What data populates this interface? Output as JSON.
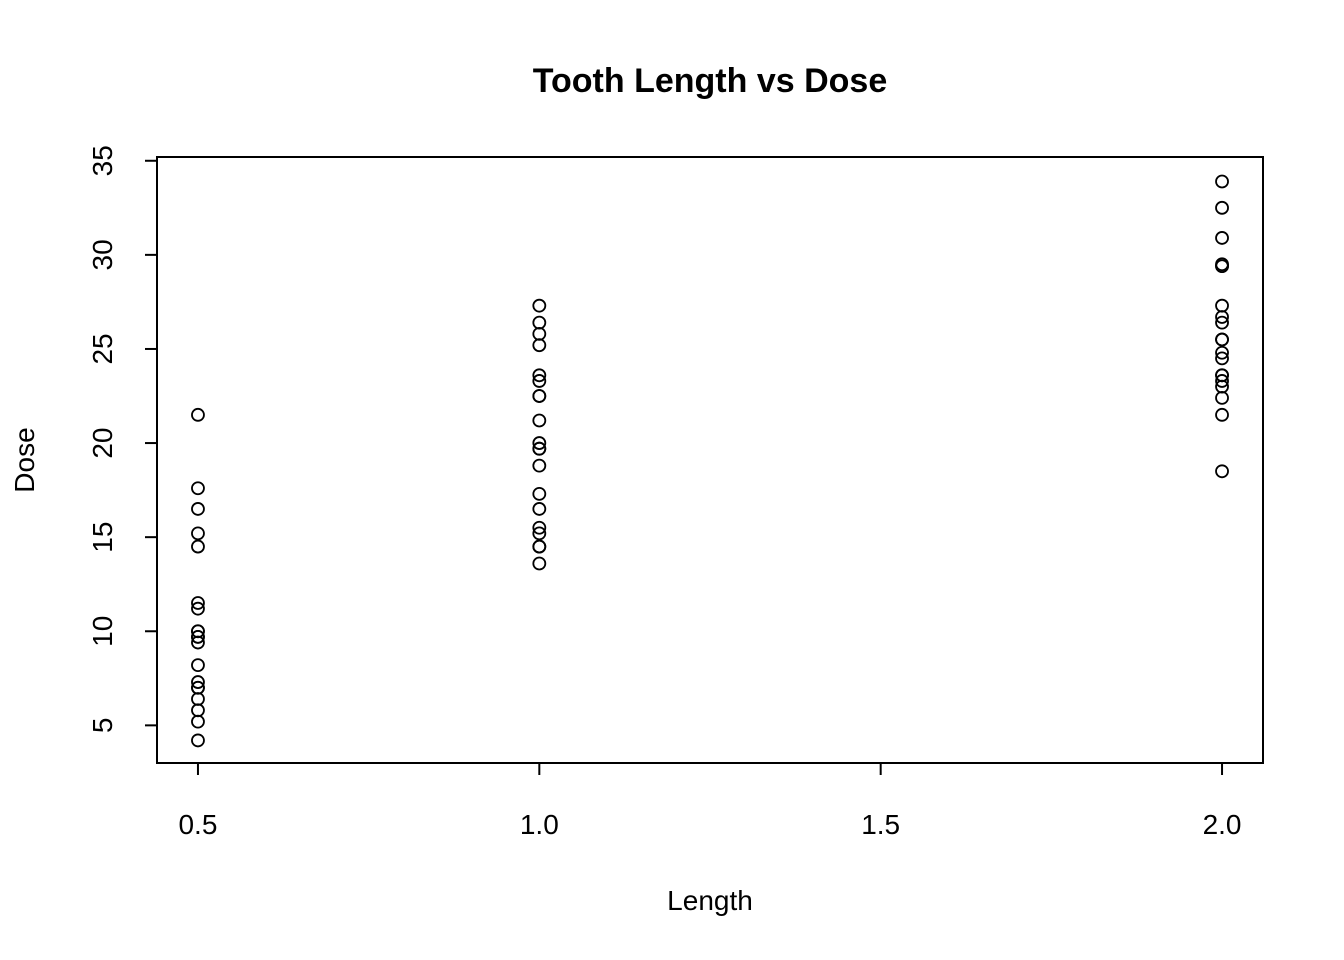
{
  "chart_data": {
    "type": "scatter",
    "title": "Tooth Length vs Dose",
    "xlabel": "Length",
    "ylabel": "Dose",
    "xlim": [
      0.44,
      2.06
    ],
    "ylim": [
      3.0,
      35.2
    ],
    "x_ticks": [
      0.5,
      1.0,
      1.5,
      2.0
    ],
    "x_tick_labels": [
      "0.5",
      "1.0",
      "1.5",
      "2.0"
    ],
    "y_ticks": [
      5,
      10,
      15,
      20,
      25,
      30,
      35
    ],
    "y_tick_labels": [
      "5",
      "10",
      "15",
      "20",
      "25",
      "30",
      "35"
    ],
    "grid": false,
    "legend": "none",
    "marker": "open-circle",
    "colors": {
      "points": "#000000",
      "axes": "#000000",
      "background": "#ffffff"
    },
    "series": [
      {
        "x": [
          0.5,
          0.5,
          0.5,
          0.5,
          0.5,
          0.5,
          0.5,
          0.5,
          0.5,
          0.5,
          0.5,
          0.5,
          0.5,
          0.5,
          0.5,
          0.5,
          0.5,
          0.5,
          0.5,
          0.5,
          1.0,
          1.0,
          1.0,
          1.0,
          1.0,
          1.0,
          1.0,
          1.0,
          1.0,
          1.0,
          1.0,
          1.0,
          1.0,
          1.0,
          1.0,
          1.0,
          1.0,
          1.0,
          1.0,
          1.0,
          2.0,
          2.0,
          2.0,
          2.0,
          2.0,
          2.0,
          2.0,
          2.0,
          2.0,
          2.0,
          2.0,
          2.0,
          2.0,
          2.0,
          2.0,
          2.0,
          2.0,
          2.0,
          2.0,
          2.0
        ],
        "y": [
          4.2,
          5.2,
          5.8,
          6.4,
          7.0,
          7.3,
          8.2,
          9.4,
          9.7,
          10.0,
          11.2,
          11.5,
          14.5,
          15.2,
          16.5,
          17.6,
          21.5,
          9.7,
          10.0,
          7.0,
          13.6,
          14.5,
          15.2,
          15.5,
          16.5,
          17.3,
          18.8,
          19.7,
          20.0,
          21.2,
          22.5,
          23.3,
          23.6,
          25.2,
          25.8,
          26.4,
          27.3,
          22.5,
          14.5,
          19.7,
          18.5,
          21.5,
          22.4,
          23.0,
          23.3,
          23.6,
          24.5,
          24.8,
          25.5,
          26.4,
          26.7,
          27.3,
          29.4,
          29.5,
          30.9,
          32.5,
          33.9,
          23.6,
          25.5,
          29.4
        ]
      }
    ]
  }
}
